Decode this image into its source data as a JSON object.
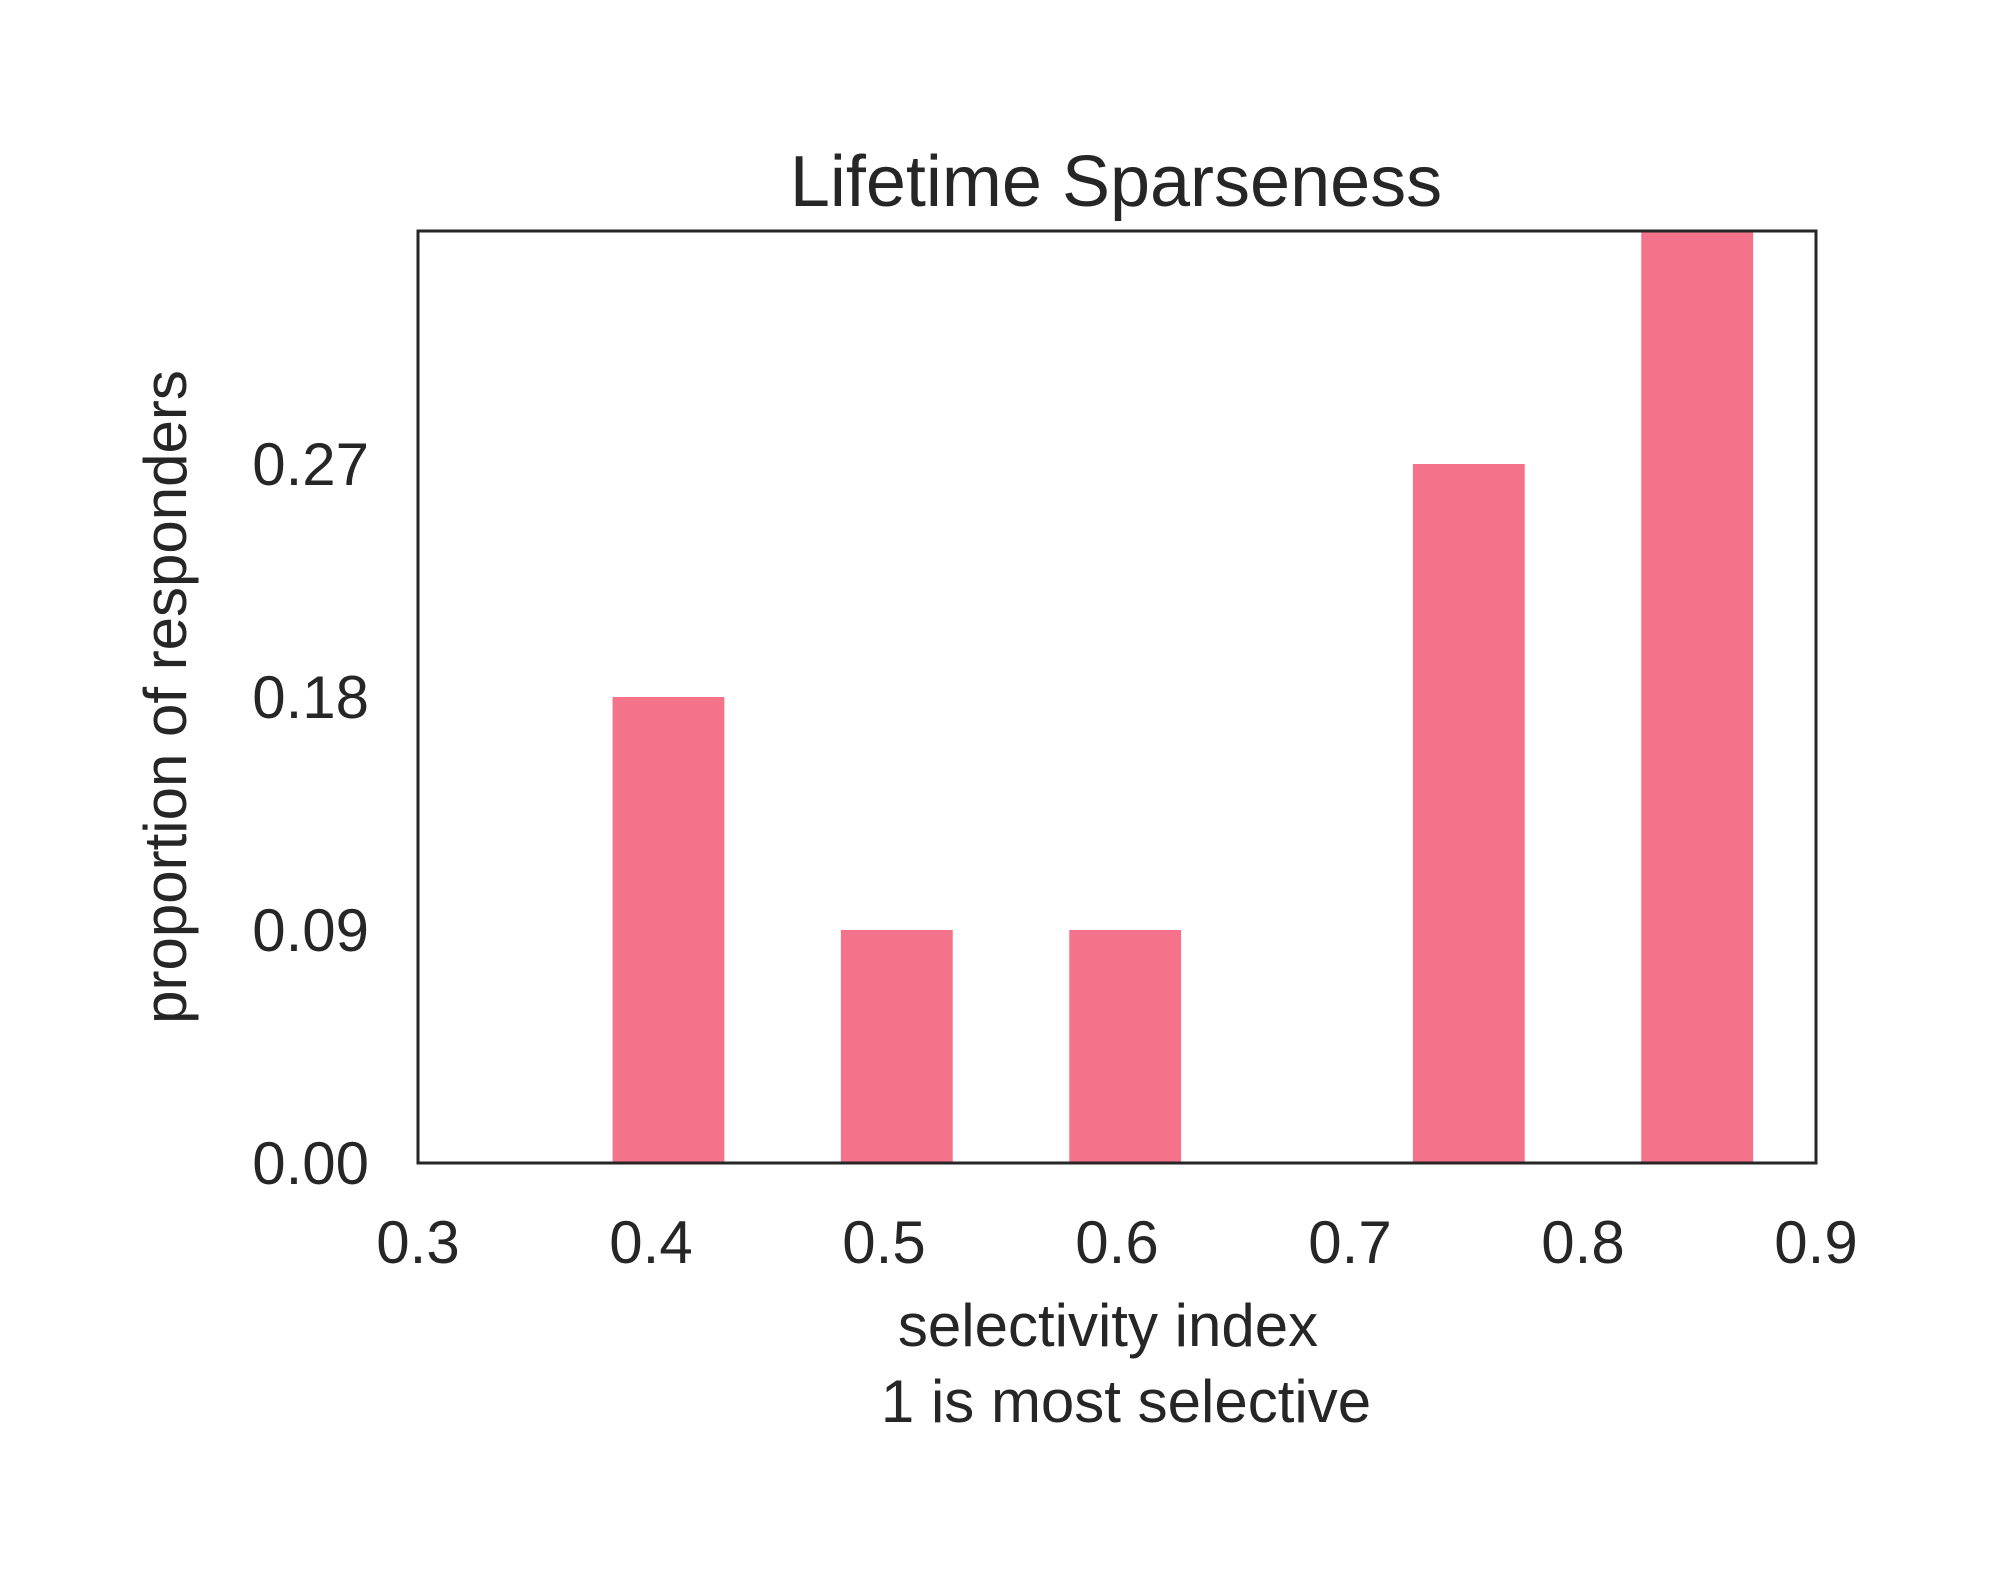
{
  "chart_data": {
    "type": "bar",
    "title": "Lifetime Sparseness",
    "xlabel": "selectivity index",
    "xlabel_line2": "1 is most selective",
    "ylabel": "proportion of responders",
    "xlim": [
      0.3,
      0.9
    ],
    "ylim": [
      0.0,
      0.36
    ],
    "xticks": [
      "0.3",
      "0.4",
      "0.5",
      "0.6",
      "0.7",
      "0.8",
      "0.9"
    ],
    "yticks": [
      "0.00",
      "0.09",
      "0.18",
      "0.27"
    ],
    "bar_width": 0.048,
    "bars": [
      {
        "x": 0.4075,
        "value": 0.18
      },
      {
        "x": 0.5055,
        "value": 0.09
      },
      {
        "x": 0.6035,
        "value": 0.09
      },
      {
        "x": 0.751,
        "value": 0.27
      },
      {
        "x": 0.849,
        "value": 0.36
      }
    ],
    "bar_color": "#f5738a",
    "grid": false
  }
}
